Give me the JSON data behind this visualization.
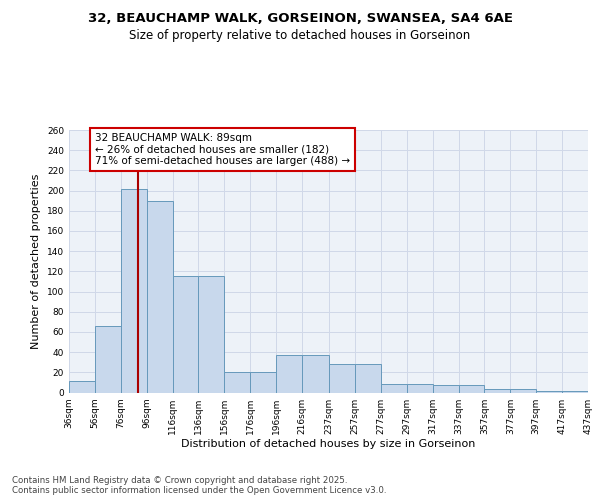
{
  "title_line1": "32, BEAUCHAMP WALK, GORSEINON, SWANSEA, SA4 6AE",
  "title_line2": "Size of property relative to detached houses in Gorseinon",
  "xlabel": "Distribution of detached houses by size in Gorseinon",
  "ylabel": "Number of detached properties",
  "bin_lefts": [
    36,
    56,
    76,
    96,
    116,
    136,
    156,
    176,
    196,
    216,
    237,
    257,
    277,
    297,
    317,
    337,
    357,
    377,
    397,
    417
  ],
  "bin_rights": [
    56,
    76,
    96,
    116,
    136,
    156,
    176,
    196,
    216,
    237,
    257,
    277,
    297,
    317,
    337,
    357,
    377,
    397,
    417,
    437
  ],
  "bar_counts": [
    11,
    66,
    202,
    190,
    115,
    115,
    20,
    20,
    37,
    37,
    28,
    28,
    8,
    8,
    7,
    7,
    3,
    3,
    1,
    1
  ],
  "tick_positions": [
    36,
    56,
    76,
    96,
    116,
    136,
    156,
    176,
    196,
    216,
    237,
    257,
    277,
    297,
    317,
    337,
    357,
    377,
    397,
    417,
    437
  ],
  "tick_labels": [
    "36sqm",
    "56sqm",
    "76sqm",
    "96sqm",
    "116sqm",
    "136sqm",
    "156sqm",
    "176sqm",
    "196sqm",
    "216sqm",
    "237sqm",
    "257sqm",
    "277sqm",
    "297sqm",
    "317sqm",
    "337sqm",
    "357sqm",
    "377sqm",
    "397sqm",
    "417sqm",
    "437sqm"
  ],
  "bar_color": "#c8d8ec",
  "bar_edge_color": "#6699bb",
  "grid_color": "#d0d8e8",
  "bg_color": "#edf2f8",
  "vline_color": "#aa0000",
  "vline_x": 89,
  "annotation_text": "32 BEAUCHAMP WALK: 89sqm\n← 26% of detached houses are smaller (182)\n71% of semi-detached houses are larger (488) →",
  "annotation_box_edgecolor": "#cc0000",
  "footer_text": "Contains HM Land Registry data © Crown copyright and database right 2025.\nContains public sector information licensed under the Open Government Licence v3.0.",
  "ylim_max": 260,
  "yticks": [
    0,
    20,
    40,
    60,
    80,
    100,
    120,
    140,
    160,
    180,
    200,
    220,
    240,
    260
  ],
  "title_fontsize": 9.5,
  "subtitle_fontsize": 8.5,
  "ylabel_fontsize": 8,
  "xlabel_fontsize": 8,
  "tick_fontsize": 6.5,
  "annot_fontsize": 7.5,
  "footer_fontsize": 6.2
}
